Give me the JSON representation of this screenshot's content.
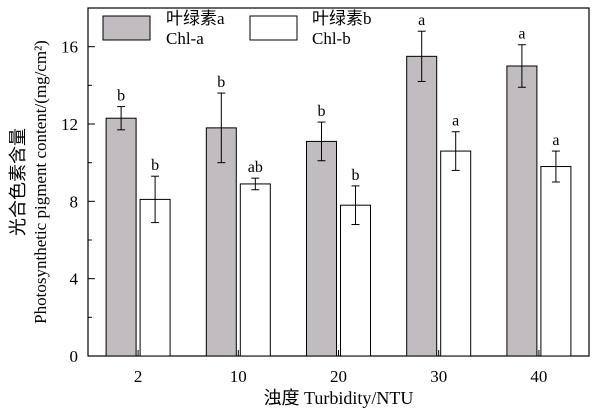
{
  "chart_data": {
    "type": "bar",
    "categories": [
      "2",
      "10",
      "20",
      "30",
      "40"
    ],
    "series": [
      {
        "name_cn": "叶绿素a",
        "name_en": "Chl-a",
        "color": "#c0bcc0",
        "values": [
          12.3,
          11.8,
          11.1,
          15.5,
          15.0
        ],
        "errors": [
          0.6,
          1.8,
          1.0,
          1.3,
          1.1
        ],
        "letters": [
          "b",
          "b",
          "b",
          "a",
          "a"
        ]
      },
      {
        "name_cn": "叶绿素b",
        "name_en": "Chl-b",
        "color": "#ffffff",
        "values": [
          8.1,
          8.9,
          7.8,
          10.6,
          9.8
        ],
        "errors": [
          1.2,
          0.3,
          1.0,
          1.0,
          0.8
        ],
        "letters": [
          "b",
          "ab",
          "b",
          "a",
          "a"
        ]
      }
    ],
    "ylim": [
      0,
      18
    ],
    "yticks": [
      0,
      4,
      8,
      12,
      16
    ],
    "ylabel_cn": "光合色素含量",
    "ylabel_en": "Photosynthetic pigment content/(mg/cm²)",
    "xlabel": "浊度 Turbidity/NTU",
    "legend_position": "top-left"
  }
}
